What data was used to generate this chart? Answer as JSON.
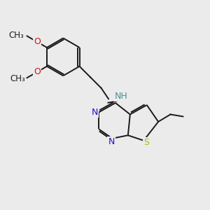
{
  "background_color": "#ebebeb",
  "bond_color": "#1a1a1a",
  "n_color": "#1414cc",
  "s_color": "#b8b800",
  "o_color": "#cc1414",
  "nh_color": "#4a9090",
  "figsize": [
    3.0,
    3.0
  ],
  "dpi": 100,
  "xlim": [
    0,
    10
  ],
  "ylim": [
    0,
    10
  ]
}
